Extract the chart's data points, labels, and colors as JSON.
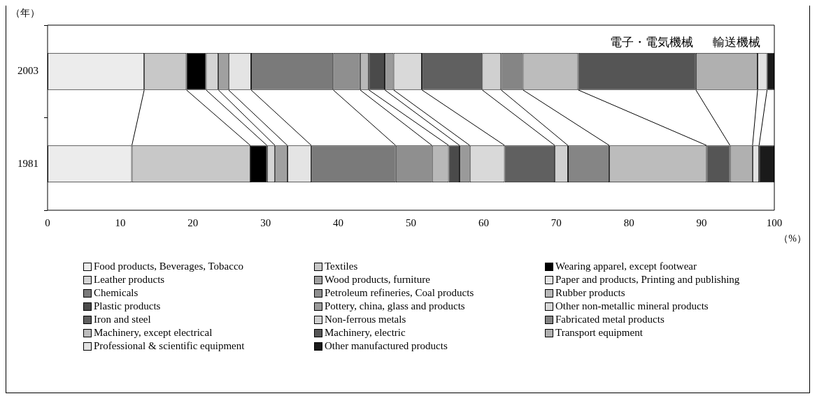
{
  "chart_data": {
    "type": "bar",
    "orientation": "horizontal",
    "stacked": true,
    "ylabel": "（年）",
    "xlabel": "（%）",
    "categories": [
      "2003",
      "1981"
    ],
    "xlim": [
      0,
      100
    ],
    "xticks": [
      0,
      10,
      20,
      30,
      40,
      50,
      60,
      70,
      80,
      90,
      100
    ],
    "grid": false,
    "legend": "bottom",
    "annotations": [
      "電子・電気機械",
      "輸送機械"
    ],
    "series": [
      {
        "name": "Food products, Beverages, Tobacco",
        "color": "#ececec",
        "values": [
          13.3,
          11.6
        ]
      },
      {
        "name": "Textiles",
        "color": "#c8c8c8",
        "values": [
          5.8,
          16.3
        ]
      },
      {
        "name": "Wearing apparel, except footwear",
        "color": "#000000",
        "values": [
          2.7,
          2.3
        ]
      },
      {
        "name": "Leather products",
        "color": "#d4d4d4",
        "values": [
          1.7,
          1.1
        ]
      },
      {
        "name": "Wood products, furniture",
        "color": "#a0a0a0",
        "values": [
          1.4,
          1.7
        ]
      },
      {
        "name": "Paper and products, Printing and publishing",
        "color": "#e4e4e4",
        "values": [
          3.1,
          3.3
        ]
      },
      {
        "name": "Chemicals",
        "color": "#7a7a7a",
        "values": [
          11.3,
          11.6
        ]
      },
      {
        "name": "Petroleum refineries, Coal products",
        "color": "#8f8f8f",
        "values": [
          3.7,
          5.0
        ]
      },
      {
        "name": "Rubber products",
        "color": "#b8b8b8",
        "values": [
          1.2,
          2.3
        ]
      },
      {
        "name": "Plastic products",
        "color": "#4a4a4a",
        "values": [
          2.2,
          1.5
        ]
      },
      {
        "name": "Pottery, china, glass and products",
        "color": "#9a9a9a",
        "values": [
          1.2,
          1.4
        ]
      },
      {
        "name": "Other non-metallic mineral products",
        "color": "#d9d9d9",
        "values": [
          3.9,
          4.8
        ]
      },
      {
        "name": "Iron and steel",
        "color": "#606060",
        "values": [
          8.3,
          6.9
        ]
      },
      {
        "name": "Non-ferrous metals",
        "color": "#d0d0d0",
        "values": [
          2.6,
          1.8
        ]
      },
      {
        "name": "Fabricated metal products",
        "color": "#858585",
        "values": [
          3.0,
          5.7
        ]
      },
      {
        "name": "Machinery, except electrical",
        "color": "#bcbcbc",
        "values": [
          7.6,
          13.4
        ]
      },
      {
        "name": "Machinery, electric",
        "color": "#555555",
        "values": [
          16.2,
          3.2
        ]
      },
      {
        "name": "Transport equipment",
        "color": "#b0b0b0",
        "values": [
          8.5,
          3.1
        ]
      },
      {
        "name": "Professional & scientific equipment",
        "color": "#e2e2e2",
        "values": [
          1.3,
          0.9
        ]
      },
      {
        "name": "Other manufactured products",
        "color": "#1a1a1a",
        "values": [
          1.0,
          2.1
        ]
      }
    ]
  }
}
